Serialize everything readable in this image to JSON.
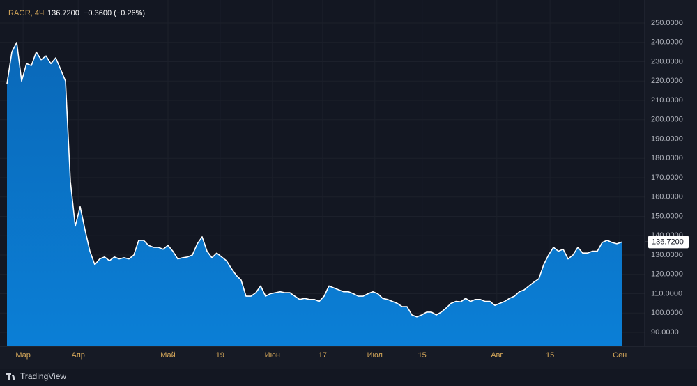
{
  "chart_data": {
    "type": "area",
    "symbol": "RAGR, 4Ч",
    "price": "136.7200",
    "change": "−0.3600 (−0.26%)",
    "last_value_label": "136.7200",
    "brand": "TradingView",
    "color": "#0b78cf",
    "line_color": "#ffffff",
    "grid": true,
    "values": [
      218.6,
      235,
      240,
      220,
      229,
      228,
      235,
      231,
      233,
      229,
      232,
      226,
      220,
      168,
      145,
      155,
      143,
      132,
      125,
      128,
      129,
      127,
      129,
      128,
      128.6,
      128,
      130,
      137.6,
      137.6,
      135,
      134,
      134,
      133,
      135,
      132,
      128,
      128.6,
      129,
      130,
      135.8,
      139.4,
      132,
      128.6,
      131,
      129,
      127,
      123,
      119.5,
      117,
      108.7,
      108.7,
      110.5,
      114,
      108.7,
      110,
      110.5,
      111,
      110.5,
      110.5,
      108.7,
      107,
      107.6,
      107,
      107,
      106,
      108.7,
      114,
      113,
      112,
      111,
      111,
      110,
      108.7,
      108.7,
      110,
      111,
      110,
      107.6,
      107,
      106,
      105,
      103.3,
      103.3,
      99,
      98,
      99,
      100.5,
      100.5,
      99,
      100.5,
      102.6,
      105,
      106,
      105.8,
      107.6,
      106,
      107,
      107,
      106,
      106,
      104,
      105,
      106,
      107.6,
      108.7,
      111,
      112,
      114,
      116,
      117.7,
      125,
      130,
      134,
      132,
      133,
      128,
      130,
      134,
      131,
      131,
      132,
      132,
      136.5,
      137.6,
      136.5,
      135.8,
      136.72
    ],
    "xlim": [
      0,
      126
    ],
    "xticks": [
      {
        "value": 3.3,
        "label": "Мар"
      },
      {
        "value": 14.6,
        "label": "Апр"
      },
      {
        "value": 33,
        "label": "Май"
      },
      {
        "value": 43.7,
        "label": "19"
      },
      {
        "value": 54.4,
        "label": "Июн"
      },
      {
        "value": 64.7,
        "label": "17"
      },
      {
        "value": 75.4,
        "label": "Июл"
      },
      {
        "value": 85.1,
        "label": "15"
      },
      {
        "value": 100.4,
        "label": "Авг"
      },
      {
        "value": 111.3,
        "label": "15"
      },
      {
        "value": 125.6,
        "label": "Сен"
      }
    ],
    "ylim": [
      82.8,
      261.9
    ],
    "yticks": [
      {
        "value": 90,
        "label": "90.0000"
      },
      {
        "value": 100,
        "label": "100.0000"
      },
      {
        "value": 110,
        "label": "110.0000"
      },
      {
        "value": 120,
        "label": "120.0000"
      },
      {
        "value": 130,
        "label": "130.0000"
      },
      {
        "value": 140,
        "label": "140.0000"
      },
      {
        "value": 150,
        "label": "150.0000"
      },
      {
        "value": 160,
        "label": "160.0000"
      },
      {
        "value": 170,
        "label": "170.0000"
      },
      {
        "value": 180,
        "label": "180.0000"
      },
      {
        "value": 190,
        "label": "190.0000"
      },
      {
        "value": 200,
        "label": "200.0000"
      },
      {
        "value": 210,
        "label": "210.0000"
      },
      {
        "value": 220,
        "label": "220.0000"
      },
      {
        "value": 230,
        "label": "230.0000"
      },
      {
        "value": 240,
        "label": "240.0000"
      },
      {
        "value": 250,
        "label": "250.0000"
      }
    ]
  }
}
